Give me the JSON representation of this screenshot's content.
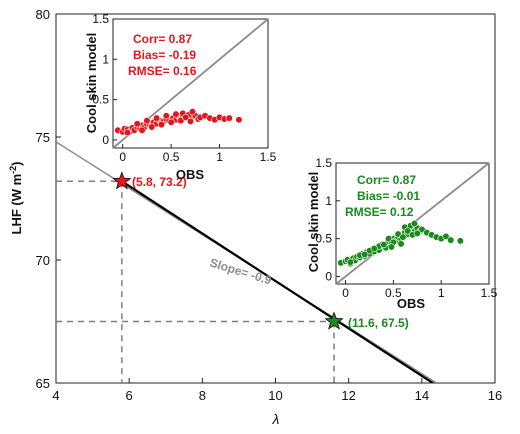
{
  "chart_data": [
    {
      "type": "line",
      "xlabel": "λ",
      "ylabel_main": "LHF (W m",
      "ylabel_sup": "-2",
      "ylabel_close": ")",
      "xlim": [
        4,
        16
      ],
      "ylim": [
        65,
        80
      ],
      "xticks": [
        "4",
        "6",
        "8",
        "10",
        "12",
        "14",
        "16"
      ],
      "yticks": [
        "65",
        "70",
        "75",
        "80"
      ],
      "grid": false,
      "fit_line": {
        "x": [
          4,
          14.4
        ],
        "y": [
          74.8,
          65
        ]
      },
      "model_curve": {
        "x": [
          5.8,
          14.3
        ],
        "y": [
          73.2,
          65
        ]
      },
      "points": [
        {
          "x": 5.8,
          "y": 73.2,
          "label": "(5.8, 73.2)",
          "color": "#e8131b"
        },
        {
          "x": 11.6,
          "y": 67.5,
          "label": "(11.6, 67.5)",
          "color": "#1a8a1a"
        }
      ],
      "slope_label": "Slope= -0.9",
      "colors": {
        "line": "#000000",
        "fit": "#8c8c8c",
        "dashed": "#7f7f7f"
      }
    },
    {
      "type": "scatter",
      "xlabel": "OBS",
      "ylabel": "Cool skin model",
      "xlim": [
        -0.1,
        1.5
      ],
      "ylim": [
        -0.1,
        1.5
      ],
      "xticks": [
        "0",
        "0.5",
        "1",
        "1.5"
      ],
      "yticks": [
        "0",
        "0.5",
        "1",
        "1.5"
      ],
      "color": "#e8131b",
      "stats": [
        "Corr=  0.87",
        "Bias= -0.19",
        "RMSE=  0.16"
      ],
      "x": [
        -0.05,
        0.0,
        0.02,
        0.05,
        0.08,
        0.1,
        0.12,
        0.15,
        0.18,
        0.2,
        0.22,
        0.25,
        0.28,
        0.3,
        0.32,
        0.35,
        0.38,
        0.4,
        0.42,
        0.45,
        0.48,
        0.5,
        0.52,
        0.55,
        0.58,
        0.6,
        0.62,
        0.65,
        0.68,
        0.7,
        0.72,
        0.75,
        0.78,
        0.8,
        0.85,
        0.9,
        0.95,
        1.0,
        1.05,
        1.1,
        1.2,
        0.15,
        0.25,
        0.35,
        0.45,
        0.55,
        0.62,
        0.68,
        0.72,
        0.05,
        0.2,
        0.3,
        0.4,
        0.5,
        0.6,
        0.65,
        0.7
      ],
      "y": [
        0.12,
        0.1,
        0.14,
        0.13,
        0.11,
        0.15,
        0.12,
        0.16,
        0.14,
        0.18,
        0.15,
        0.2,
        0.19,
        0.17,
        0.22,
        0.2,
        0.24,
        0.21,
        0.23,
        0.26,
        0.24,
        0.22,
        0.27,
        0.25,
        0.29,
        0.26,
        0.3,
        0.28,
        0.31,
        0.27,
        0.29,
        0.3,
        0.26,
        0.28,
        0.3,
        0.27,
        0.25,
        0.28,
        0.26,
        0.27,
        0.25,
        0.2,
        0.24,
        0.27,
        0.3,
        0.32,
        0.33,
        0.31,
        0.35,
        0.09,
        0.12,
        0.16,
        0.19,
        0.22,
        0.24,
        0.28,
        0.23
      ]
    },
    {
      "type": "scatter",
      "xlabel": "OBS",
      "ylabel": "Cool skin model",
      "xlim": [
        -0.1,
        1.5
      ],
      "ylim": [
        -0.1,
        1.5
      ],
      "xticks": [
        "0",
        "0.5",
        "1",
        "1.5"
      ],
      "yticks": [
        "0",
        "0.5",
        "1",
        "1.5"
      ],
      "color": "#1a8a1a",
      "stats": [
        "Corr=  0.87",
        "Bias= -0.01",
        "RMSE=  0.12"
      ],
      "x": [
        -0.05,
        0.0,
        0.02,
        0.05,
        0.08,
        0.1,
        0.12,
        0.15,
        0.18,
        0.2,
        0.22,
        0.25,
        0.28,
        0.3,
        0.32,
        0.35,
        0.38,
        0.4,
        0.42,
        0.45,
        0.48,
        0.5,
        0.52,
        0.55,
        0.58,
        0.6,
        0.62,
        0.65,
        0.68,
        0.7,
        0.72,
        0.75,
        0.78,
        0.8,
        0.85,
        0.9,
        0.95,
        1.0,
        1.05,
        1.1,
        1.2,
        0.15,
        0.25,
        0.35,
        0.45,
        0.55,
        0.62,
        0.68,
        0.72,
        0.05,
        0.2,
        0.3,
        0.4,
        0.5,
        0.6,
        0.65,
        0.7,
        0.75,
        0.58,
        0.48
      ],
      "y": [
        0.18,
        0.2,
        0.22,
        0.17,
        0.24,
        0.21,
        0.26,
        0.25,
        0.3,
        0.27,
        0.32,
        0.3,
        0.36,
        0.33,
        0.38,
        0.35,
        0.42,
        0.4,
        0.38,
        0.46,
        0.44,
        0.5,
        0.47,
        0.52,
        0.5,
        0.55,
        0.58,
        0.56,
        0.6,
        0.62,
        0.59,
        0.64,
        0.6,
        0.62,
        0.58,
        0.55,
        0.52,
        0.5,
        0.53,
        0.48,
        0.47,
        0.28,
        0.34,
        0.4,
        0.5,
        0.56,
        0.65,
        0.67,
        0.7,
        0.19,
        0.29,
        0.37,
        0.42,
        0.45,
        0.52,
        0.6,
        0.55,
        0.57,
        0.43,
        0.39
      ]
    }
  ]
}
